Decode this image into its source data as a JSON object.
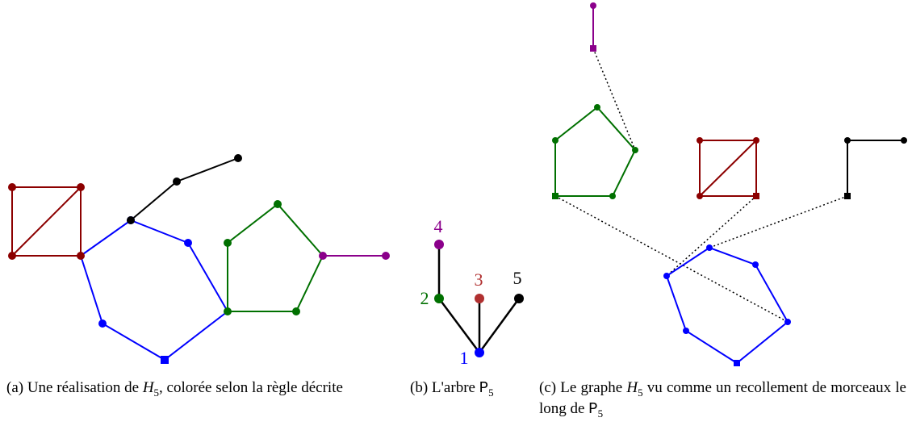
{
  "labels": {
    "n1": "1",
    "n2": "2",
    "n3": "3",
    "n4": "4",
    "n5": "5"
  },
  "captions": {
    "a": {
      "prefix": "(a) Une réalisation de ",
      "math": "H",
      "sub": "5",
      "suffix": ", colorée selon la règle décrite"
    },
    "b": {
      "prefix": "(b) L'arbre ",
      "mono": "P",
      "sub": "5"
    },
    "c": {
      "prefix": "(c) Le graphe ",
      "math": "H",
      "sub": "5",
      "middle": " vu comme un recollement de morceaux le long de ",
      "mono": "P",
      "sub2": "5"
    }
  }
}
